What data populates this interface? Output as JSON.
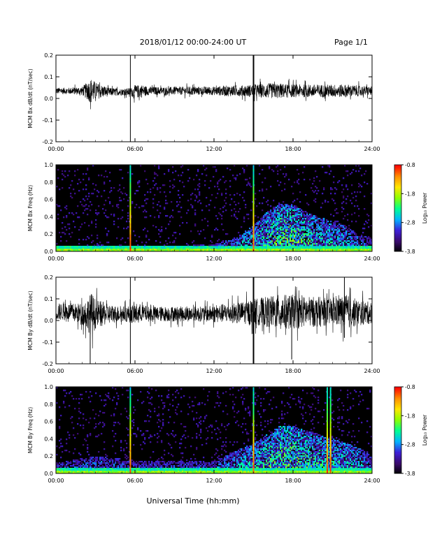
{
  "header": {
    "title": "2018/01/12  00:00-24:00 UT",
    "page": "Page 1/1"
  },
  "footer": {
    "xlabel": "Universal Time (hh:mm)"
  },
  "colorbar": {
    "label": "Log₁₀ Power",
    "ticks": [
      "-0.8",
      "-1.8",
      "-2.8",
      "-3.8"
    ],
    "range": [
      -3.8,
      -0.8
    ],
    "colors": [
      "#000000",
      "#3b0a6e",
      "#3c1fd8",
      "#00b4ff",
      "#00ff90",
      "#8cff00",
      "#ffe600",
      "#ff8c00",
      "#ff0000"
    ]
  },
  "chart_data": [
    {
      "type": "line",
      "ylabel": "MCM Bx dB/dt (nT/sec)",
      "xlim": [
        0,
        24
      ],
      "ylim": [
        -0.2,
        0.2
      ],
      "xticks": [
        "00:00",
        "06:00",
        "12:00",
        "18:00",
        "24:00"
      ],
      "yticks": [
        "-0.2",
        "-0.1",
        "0.0",
        "0.1",
        "0.2"
      ],
      "series": [
        {
          "x": [
            0,
            1,
            2,
            2.7,
            3,
            4,
            5,
            5.7,
            6,
            6.5,
            7,
            8,
            9,
            10,
            11,
            12,
            13,
            14,
            15,
            16,
            17,
            18,
            19,
            20,
            21,
            22,
            23,
            24
          ],
          "baseline": [
            0.035,
            0.035,
            0.035,
            0.035,
            0.035,
            0.03,
            0.03,
            0.03,
            0.03,
            0.035,
            0.035,
            0.035,
            0.035,
            0.035,
            0.035,
            0.035,
            0.035,
            0.035,
            0.035,
            0.035,
            0.035,
            0.035,
            0.035,
            0.035,
            0.035,
            0.035,
            0.035,
            0.035
          ],
          "amplitude": [
            0.015,
            0.015,
            0.02,
            0.06,
            0.04,
            0.02,
            0.015,
            0.02,
            0.03,
            0.03,
            0.02,
            0.018,
            0.018,
            0.02,
            0.02,
            0.02,
            0.025,
            0.025,
            0.03,
            0.035,
            0.035,
            0.03,
            0.03,
            0.03,
            0.03,
            0.03,
            0.025,
            0.02
          ],
          "spikes": [
            {
              "x": 5.65,
              "min": -0.2,
              "max": 0.2
            },
            {
              "x": 15.0,
              "min": -0.2,
              "max": 0.2
            }
          ]
        }
      ]
    },
    {
      "type": "heatmap",
      "ylabel": "MCM Bx Freq (Hz)",
      "xlim": [
        0,
        24
      ],
      "ylim": [
        0,
        1
      ],
      "xticks": [
        "00:00",
        "06:00",
        "12:00",
        "18:00",
        "24:00"
      ],
      "yticks": [
        "0.0",
        "0.2",
        "0.4",
        "0.6",
        "0.8",
        "1.0"
      ],
      "zlim": [
        -3.8,
        -0.8
      ],
      "activity_x": [
        0,
        3,
        6,
        9,
        12,
        13.5,
        15,
        16,
        17,
        18,
        19,
        20,
        21,
        22,
        23,
        24
      ],
      "activity_fmax": [
        0.05,
        0.08,
        0.05,
        0.07,
        0.08,
        0.15,
        0.3,
        0.45,
        0.55,
        0.55,
        0.45,
        0.4,
        0.35,
        0.3,
        0.2,
        0.15
      ],
      "activity_level": [
        0.25,
        0.3,
        0.25,
        0.3,
        0.32,
        0.4,
        0.45,
        0.5,
        0.55,
        0.55,
        0.5,
        0.45,
        0.42,
        0.4,
        0.35,
        0.3
      ],
      "spikes": [
        5.65,
        15.0
      ]
    },
    {
      "type": "line",
      "ylabel": "MCM By dB/dt (nT/sec)",
      "xlim": [
        0,
        24
      ],
      "ylim": [
        -0.2,
        0.2
      ],
      "xticks": [
        "00:00",
        "06:00",
        "12:00",
        "18:00",
        "24:00"
      ],
      "yticks": [
        "-0.2",
        "-0.1",
        "0.0",
        "0.1",
        "0.2"
      ],
      "series": [
        {
          "x": [
            0,
            1,
            2,
            2.7,
            3,
            4,
            5,
            5.7,
            6,
            6.5,
            7,
            8,
            9,
            10,
            11,
            12,
            13,
            14,
            15,
            16,
            17,
            18,
            19,
            20,
            21,
            22,
            23,
            24
          ],
          "baseline": [
            0.04,
            0.04,
            0.03,
            0.03,
            0.03,
            0.03,
            0.03,
            0.03,
            0.03,
            0.035,
            0.03,
            0.03,
            0.03,
            0.03,
            0.03,
            0.03,
            0.035,
            0.035,
            0.04,
            0.04,
            0.04,
            0.04,
            0.04,
            0.04,
            0.04,
            0.04,
            0.035,
            0.035
          ],
          "amplitude": [
            0.04,
            0.04,
            0.05,
            0.1,
            0.07,
            0.045,
            0.035,
            0.04,
            0.05,
            0.04,
            0.035,
            0.035,
            0.035,
            0.035,
            0.035,
            0.04,
            0.045,
            0.05,
            0.06,
            0.07,
            0.08,
            0.08,
            0.07,
            0.07,
            0.06,
            0.08,
            0.06,
            0.05
          ],
          "spikes": [
            {
              "x": 2.6,
              "min": -0.2,
              "max": 0.05
            },
            {
              "x": 5.65,
              "min": -0.2,
              "max": 0.2
            },
            {
              "x": 15.0,
              "min": -0.2,
              "max": 0.2
            },
            {
              "x": 17.9,
              "min": -0.18,
              "max": 0.06
            },
            {
              "x": 21.9,
              "min": -0.08,
              "max": 0.2
            }
          ]
        }
      ]
    },
    {
      "type": "heatmap",
      "ylabel": "MCM By Freq (Hz)",
      "xlim": [
        0,
        24
      ],
      "ylim": [
        0,
        1
      ],
      "xticks": [
        "00:00",
        "06:00",
        "12:00",
        "18:00",
        "24:00"
      ],
      "yticks": [
        "0.0",
        "0.2",
        "0.4",
        "0.6",
        "0.8",
        "1.0"
      ],
      "zlim": [
        -3.8,
        -0.8
      ],
      "activity_x": [
        0,
        3,
        6,
        9,
        12,
        13.5,
        15,
        16,
        17,
        18,
        19,
        20,
        21,
        22,
        23,
        24
      ],
      "activity_fmax": [
        0.12,
        0.2,
        0.15,
        0.15,
        0.15,
        0.25,
        0.35,
        0.45,
        0.55,
        0.55,
        0.5,
        0.45,
        0.4,
        0.35,
        0.3,
        0.2
      ],
      "activity_level": [
        0.3,
        0.35,
        0.3,
        0.3,
        0.32,
        0.4,
        0.45,
        0.5,
        0.55,
        0.55,
        0.5,
        0.5,
        0.45,
        0.45,
        0.4,
        0.35
      ],
      "spikes": [
        5.65,
        15.0,
        20.6,
        20.85
      ]
    }
  ]
}
